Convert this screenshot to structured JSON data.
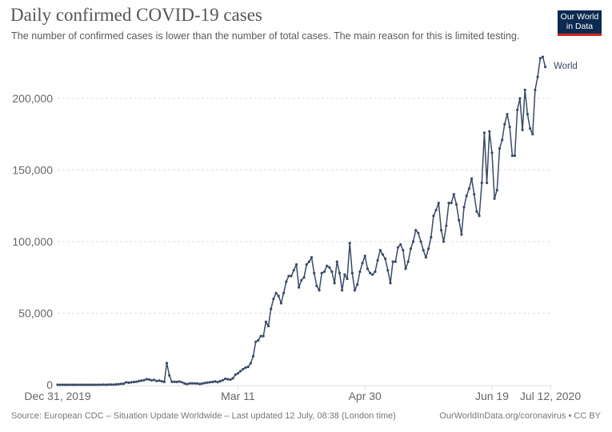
{
  "header": {
    "title": "Daily confirmed COVID-19 cases",
    "subtitle": "The number of confirmed cases is lower than the number of total cases. The main reason for this is limited testing.",
    "logo_line1": "Our World",
    "logo_line2": "in Data"
  },
  "footer": {
    "source": "Source: European CDC – Situation Update Worldwide – Last updated 12 July, 08:38 (London time)",
    "url": "OurWorldInData.org/coronavirus • CC BY"
  },
  "colors": {
    "line": "#3b4a66",
    "grid": "#dddddd",
    "logo_bg": "#0c2a50",
    "logo_accent": "#d42b21"
  },
  "chart_data": {
    "type": "line",
    "title": "Daily confirmed COVID-19 cases",
    "subtitle": "The number of confirmed cases is lower than the number of total cases. The main reason for this is limited testing.",
    "xlabel": "",
    "ylabel": "",
    "x_start": "2019-12-31",
    "x_end": "2020-07-12",
    "x_tick_labels": [
      {
        "label": "Dec 31, 2019",
        "day": 0
      },
      {
        "label": "Mar 11",
        "day": 71
      },
      {
        "label": "Apr 30",
        "day": 121
      },
      {
        "label": "Jun 19",
        "day": 171
      },
      {
        "label": "Jul 12, 2020",
        "day": 194
      }
    ],
    "y_ticks": [
      0,
      50000,
      100000,
      150000,
      200000
    ],
    "y_tick_labels": [
      "0",
      "50,000",
      "100,000",
      "150,000",
      "200,000"
    ],
    "ylim": [
      0,
      230000
    ],
    "grid": "horizontal-dashed",
    "legend": "inline-right",
    "series": [
      {
        "name": "World",
        "values": [
          27,
          0,
          0,
          17,
          0,
          15,
          0,
          0,
          0,
          0,
          0,
          1,
          0,
          0,
          1,
          0,
          4,
          17,
          136,
          19,
          151,
          140,
          97,
          259,
          441,
          665,
          787,
          1753,
          1466,
          1740,
          1980,
          2101,
          2590,
          2825,
          3235,
          3884,
          3694,
          3143,
          3385,
          2652,
          2973,
          2467,
          2015,
          15150,
          6526,
          2058,
          2117,
          1991,
          2221,
          1792,
          919,
          515,
          1030,
          995,
          1007,
          898,
          570,
          893,
          1306,
          1538,
          1813,
          2000,
          2300,
          1900,
          2500,
          3200,
          4200,
          3900,
          3600,
          4500,
          7100,
          8000,
          9500,
          10900,
          12000,
          12500,
          15000,
          20000,
          30000,
          31000,
          34000,
          34000,
          44000,
          41000,
          53000,
          60000,
          64000,
          62000,
          57000,
          64000,
          72000,
          76000,
          76000,
          80000,
          84000,
          68000,
          73000,
          75000,
          84000,
          86000,
          89000,
          78000,
          69000,
          66000,
          78000,
          79000,
          83000,
          82000,
          79000,
          71000,
          86000,
          78000,
          66000,
          77000,
          74000,
          99000,
          78000,
          66000,
          70000,
          79000,
          85000,
          90000,
          81000,
          78000,
          77000,
          79000,
          87000,
          94000,
          91000,
          88000,
          80000,
          71000,
          86000,
          86000,
          96000,
          98000,
          94000,
          81000,
          86000,
          95000,
          100000,
          108000,
          106000,
          100000,
          94000,
          89000,
          95000,
          103000,
          118000,
          122000,
          127000,
          108000,
          100000,
          111000,
          127000,
          127000,
          133000,
          126000,
          115000,
          105000,
          124000,
          132000,
          137000,
          144000,
          133000,
          121000,
          118000,
          141000,
          176000,
          141000,
          177000,
          162000,
          130000,
          136000,
          165000,
          171000,
          182000,
          189000,
          180000,
          160000,
          160000,
          192000,
          200000,
          178000,
          206000,
          189000,
          179000,
          175000,
          206000,
          215000,
          228000,
          229000,
          222000
        ]
      }
    ]
  }
}
